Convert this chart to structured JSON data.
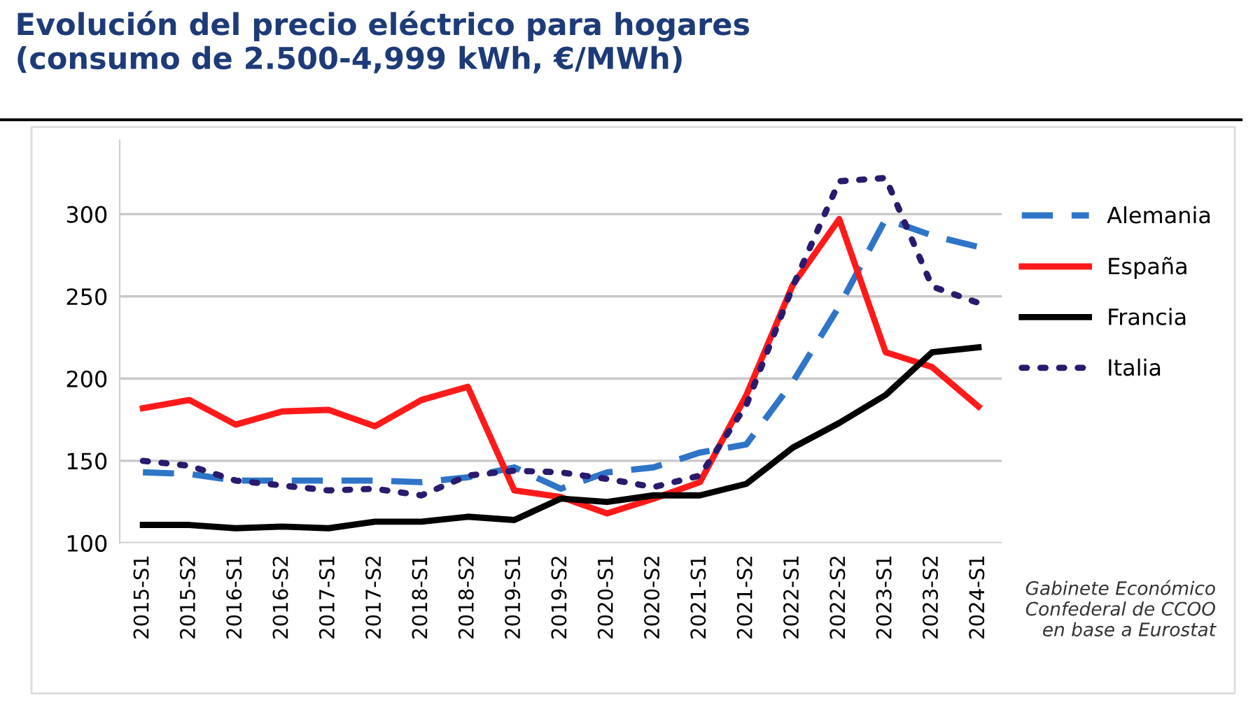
{
  "chart_data": {
    "type": "line",
    "title": "Evolución del precio eléctrico para hogares\n(consumo de 2.500-4,999 kWh, €/MWh)",
    "categories": [
      "2015-S1",
      "2015-S2",
      "2016-S1",
      "2016-S2",
      "2017-S1",
      "2017-S2",
      "2018-S1",
      "2018-S2",
      "2019-S1",
      "2019-S2",
      "2020-S1",
      "2020-S2",
      "2021-S1",
      "2021-S2",
      "2022-S1",
      "2022-S2",
      "2023-S1",
      "2023-S2",
      "2024-S1"
    ],
    "series": [
      {
        "name": "Alemania",
        "color": "#2e75c8",
        "line_style": "dashed",
        "values": [
          143,
          142,
          138,
          138,
          138,
          138,
          137,
          140,
          146,
          133,
          143,
          146,
          155,
          160,
          198,
          244,
          297,
          287,
          280
        ]
      },
      {
        "name": "España",
        "color": "#ff1a1a",
        "line_style": "solid",
        "values": [
          182,
          187,
          172,
          180,
          181,
          171,
          187,
          195,
          132,
          128,
          118,
          127,
          137,
          190,
          257,
          297,
          216,
          207,
          183
        ]
      },
      {
        "name": "Francia",
        "color": "#000000",
        "line_style": "solid",
        "values": [
          111,
          111,
          109,
          110,
          109,
          113,
          113,
          116,
          114,
          127,
          125,
          129,
          129,
          136,
          158,
          173,
          190,
          216,
          219
        ]
      },
      {
        "name": "Italia",
        "color": "#2a1a6e",
        "line_style": "dotted",
        "values": [
          150,
          147,
          138,
          135,
          132,
          133,
          129,
          141,
          144,
          143,
          139,
          134,
          141,
          184,
          256,
          320,
          322,
          256,
          246
        ]
      }
    ],
    "ylim": [
      100,
      345
    ],
    "yticks": [
      100,
      150,
      200,
      250,
      300
    ],
    "grid": "y",
    "legend": "right",
    "marker": "none",
    "annotations": [
      "Gabinete Económico\nConfederal de CCOO\nen base a Eurostat"
    ]
  }
}
